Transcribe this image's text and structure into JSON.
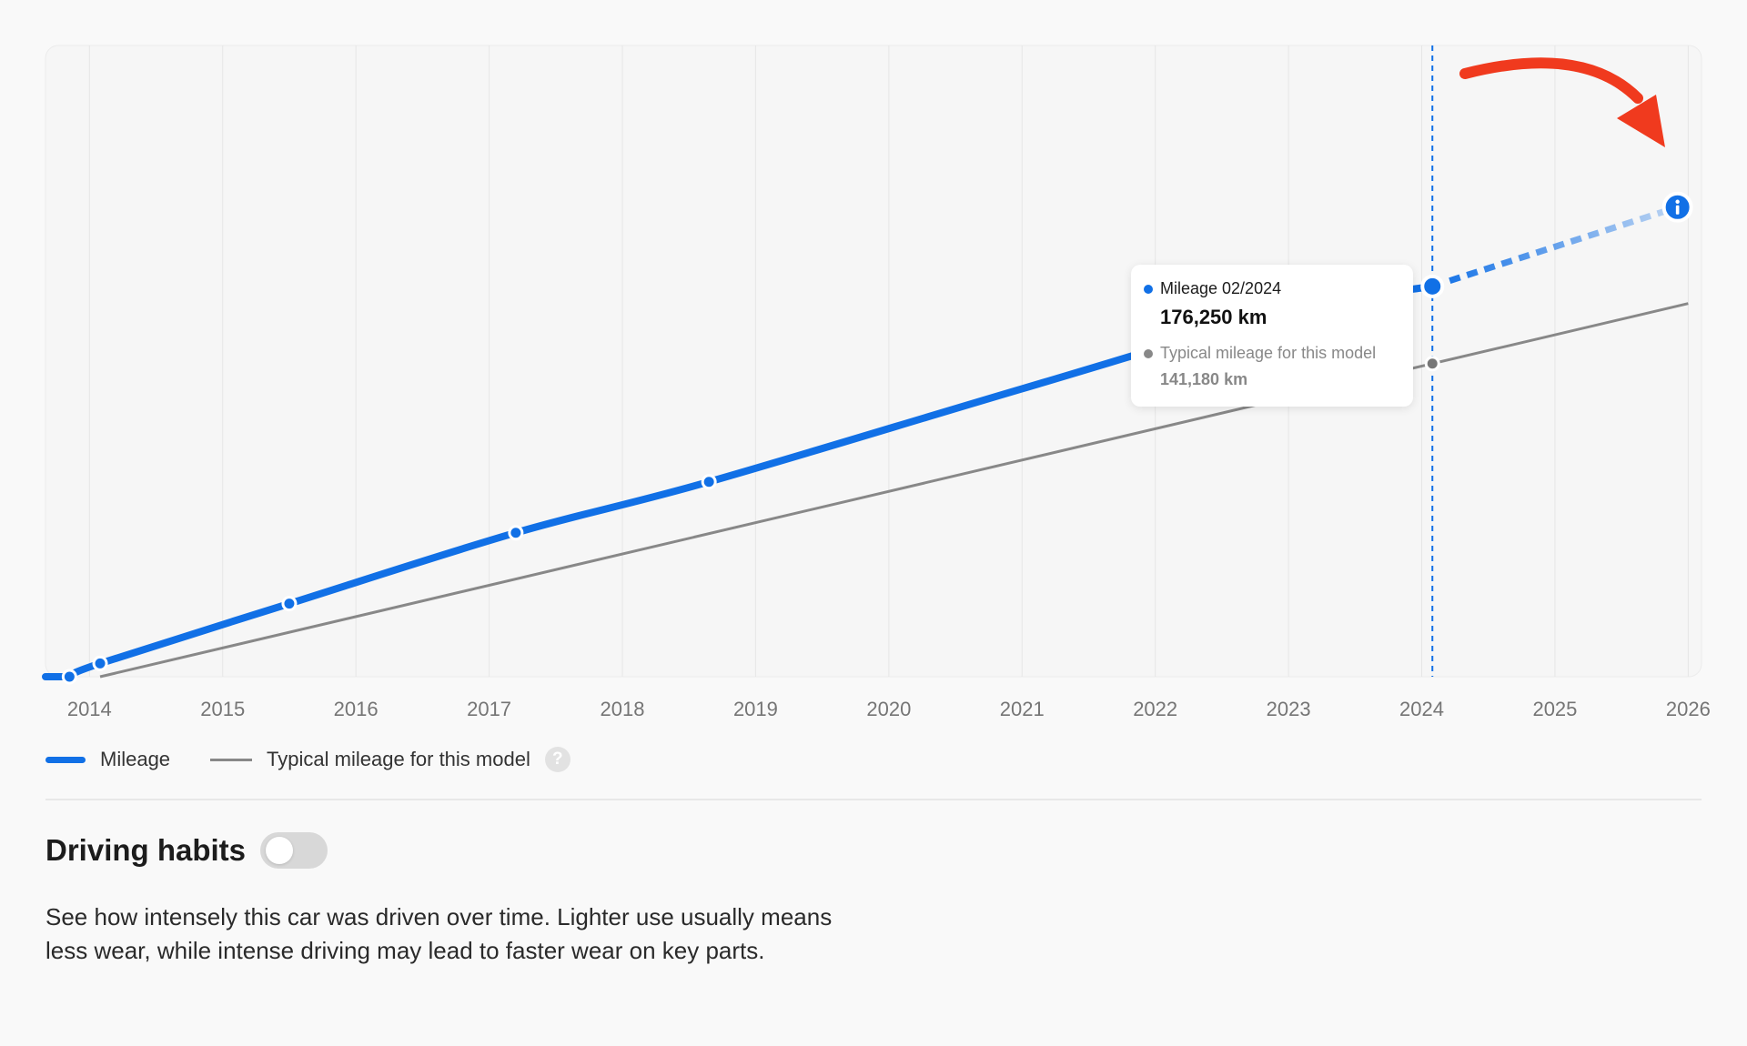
{
  "chart_data": {
    "type": "line",
    "x_ticks": [
      "2014",
      "2015",
      "2016",
      "2017",
      "2018",
      "2019",
      "2020",
      "2021",
      "2022",
      "2023",
      "2024",
      "2025",
      "2026"
    ],
    "series": [
      {
        "name": "Mileage",
        "color": "#1170e6",
        "points": [
          [
            2013.85,
            0
          ],
          [
            2014.08,
            6000
          ],
          [
            2015.5,
            33000
          ],
          [
            2017.2,
            65000
          ],
          [
            2018.65,
            88000
          ],
          [
            2021.0,
            130000
          ],
          [
            2023.0,
            165000
          ],
          [
            2024.08,
            176250
          ]
        ],
        "markers": [
          [
            2013.85,
            0
          ],
          [
            2014.08,
            6000
          ],
          [
            2015.5,
            33000
          ],
          [
            2017.2,
            65000
          ],
          [
            2018.65,
            88000
          ]
        ],
        "projection": [
          [
            2024.08,
            176250
          ],
          [
            2025.92,
            212000
          ]
        ]
      },
      {
        "name": "Typical mileage for this model",
        "color": "#888888",
        "points": [
          [
            2014.08,
            0
          ],
          [
            2026.0,
            168500
          ]
        ]
      }
    ],
    "highlight": {
      "x": 2024.08,
      "date": "02/2024"
    },
    "xlim": [
      2013.67,
      2026.1
    ],
    "ylim": [
      0,
      285000
    ],
    "grid": "vertical",
    "legend": "bottom-left"
  },
  "tooltip": {
    "title": "Mileage 02/2024",
    "value": "176,250 km",
    "secondary_label": "Typical mileage for this model",
    "secondary_value": "141,180 km"
  },
  "legend": {
    "mileage": "Mileage",
    "typical": "Typical mileage for this model",
    "help": "?"
  },
  "section": {
    "title": "Driving habits",
    "toggle_on": false,
    "description": "See how intensely this car was driven over time. Lighter use usually means less wear, while intense driving may lead to faster wear on key parts."
  },
  "colors": {
    "accent": "#1170e6",
    "typical": "#888888",
    "annotation_arrow": "#f03a1e"
  },
  "icons": {
    "info": "info-icon",
    "help": "question-circle-icon",
    "annotation": "curved-arrow-icon"
  }
}
